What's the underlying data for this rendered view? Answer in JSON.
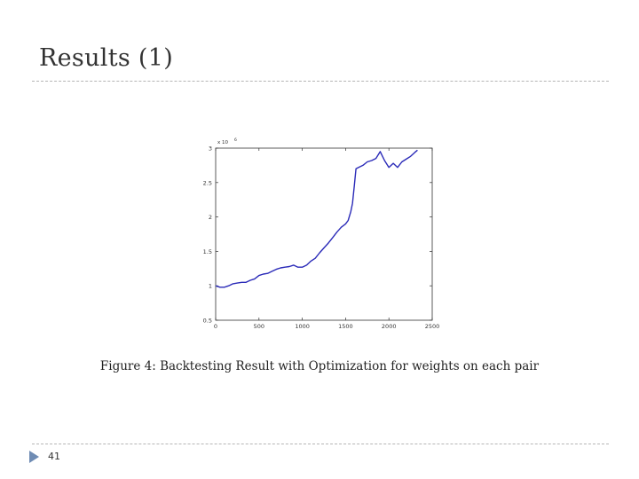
{
  "slide": {
    "title": "Results (1)",
    "caption": "Figure 4: Backtesting Result with Optimization for weights on each pair",
    "page_number": "41"
  },
  "colors": {
    "series": "#2a2ab8",
    "rule": "#b5b5b5",
    "footer_triangle": "#6f8cb4"
  },
  "icons": {
    "footer": "triangle-bullet-icon"
  },
  "chart_data": {
    "type": "line",
    "title": "",
    "xlabel": "",
    "ylabel": "",
    "multiplier_label": "x 10",
    "multiplier_exponent": "6",
    "xlim": [
      0,
      2500
    ],
    "ylim": [
      0.5,
      3
    ],
    "xticks": [
      0,
      500,
      1000,
      1500,
      2000,
      2500
    ],
    "xtick_labels": [
      "0",
      "500",
      "1000",
      "1500",
      "2000",
      "2500"
    ],
    "yticks": [
      0.5,
      1,
      1.5,
      2,
      2.5,
      3
    ],
    "ytick_labels": [
      "0.5",
      "1",
      "1.5",
      "2",
      "2.5",
      "3"
    ],
    "grid": false,
    "series": [
      {
        "x": [
          0,
          50,
          100,
          150,
          200,
          250,
          300,
          350,
          400,
          450,
          500,
          550,
          600,
          650,
          700,
          750,
          800,
          850,
          900,
          950,
          1000,
          1050,
          1100,
          1150,
          1200,
          1250,
          1300,
          1350,
          1400,
          1450,
          1500,
          1530,
          1560,
          1580,
          1600,
          1620,
          1650,
          1700,
          1750,
          1800,
          1850,
          1900,
          1950,
          2000,
          2050,
          2100,
          2150,
          2200,
          2250,
          2300,
          2330
        ],
        "y": [
          1.0,
          0.98,
          0.98,
          1.0,
          1.03,
          1.04,
          1.05,
          1.05,
          1.08,
          1.1,
          1.15,
          1.17,
          1.18,
          1.21,
          1.24,
          1.26,
          1.27,
          1.28,
          1.3,
          1.27,
          1.27,
          1.3,
          1.36,
          1.4,
          1.48,
          1.55,
          1.62,
          1.7,
          1.78,
          1.85,
          1.9,
          1.95,
          2.08,
          2.2,
          2.45,
          2.7,
          2.72,
          2.75,
          2.8,
          2.82,
          2.85,
          2.95,
          2.82,
          2.72,
          2.78,
          2.72,
          2.8,
          2.84,
          2.88,
          2.94,
          2.97
        ]
      }
    ]
  }
}
